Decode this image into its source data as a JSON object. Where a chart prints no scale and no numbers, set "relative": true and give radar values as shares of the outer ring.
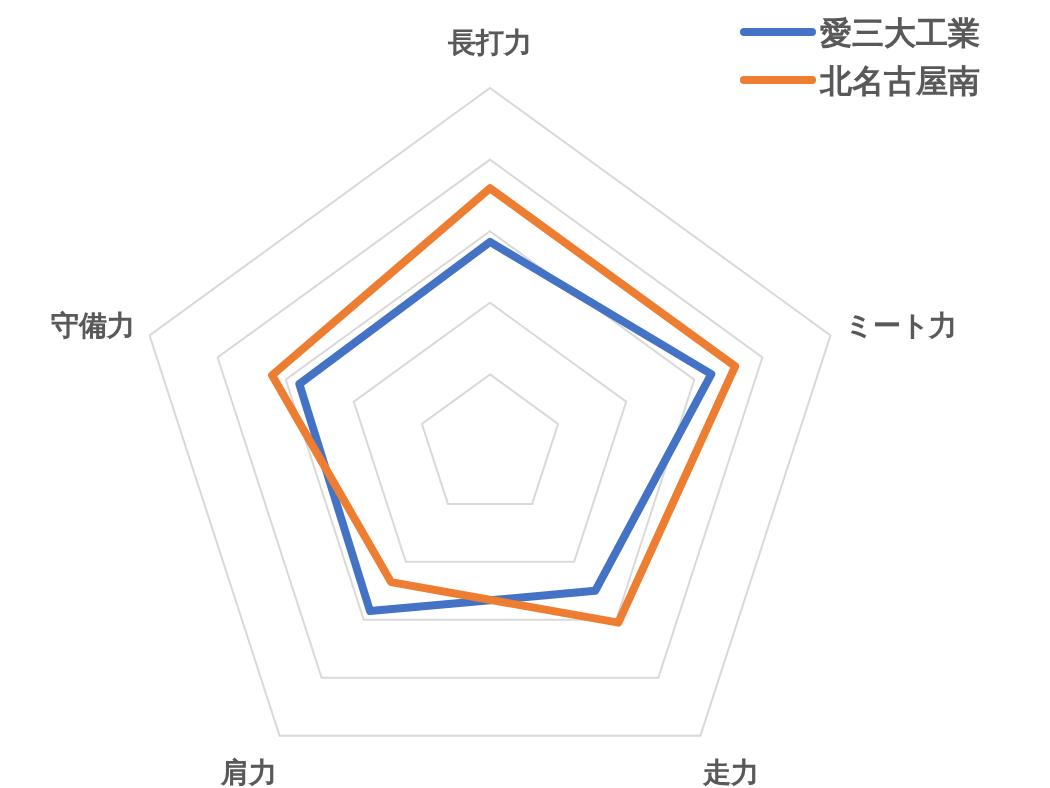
{
  "chart_data": {
    "type": "radar",
    "relative": true,
    "grid": true,
    "legend": "top right",
    "categories": [
      "長打力",
      "ミート力",
      "走力",
      "肩力",
      "守備力"
    ],
    "series": [
      {
        "name": "愛三大工業",
        "color": "#4472c4",
        "values": [
          0.57,
          0.65,
          0.5,
          0.57,
          0.56
        ]
      },
      {
        "name": "北名古屋南",
        "color": "#ed7d31",
        "values": [
          0.72,
          0.72,
          0.61,
          0.47,
          0.64
        ]
      }
    ]
  }
}
